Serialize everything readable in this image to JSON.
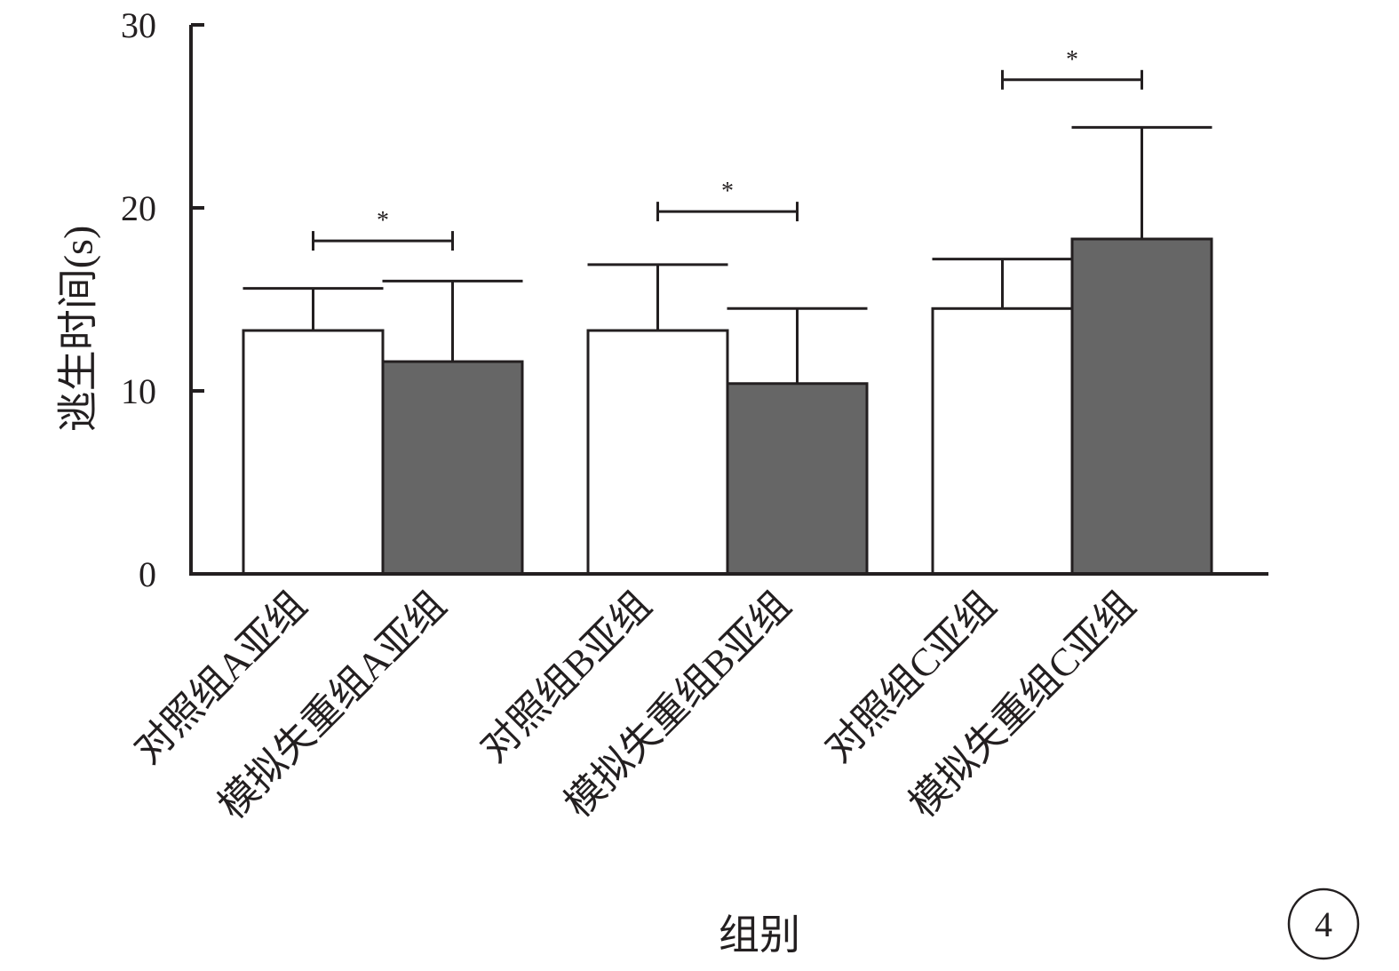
{
  "chart_data": {
    "type": "bar",
    "title": "",
    "xlabel": "组别",
    "ylabel": "逃生时间(s)",
    "ylim": [
      0,
      30
    ],
    "yticks": [
      "0",
      "10",
      "20",
      "30"
    ],
    "categories": [
      "对照组A亚组",
      "模拟失重组A亚组",
      "对照组B亚组",
      "模拟失重组B亚组",
      "对照组C亚组",
      "模拟失重组C亚组"
    ],
    "values": [
      13.3,
      11.6,
      13.3,
      10.4,
      14.5,
      18.3
    ],
    "errors": [
      2.3,
      4.4,
      3.6,
      4.1,
      2.7,
      6.1
    ],
    "bar_colors": [
      "#ffffff",
      "#666666",
      "#ffffff",
      "#666666",
      "#ffffff",
      "#666666"
    ],
    "significance": [
      {
        "from": 0,
        "to": 1,
        "y": 18.2,
        "label": "*"
      },
      {
        "from": 2,
        "to": 3,
        "y": 19.8,
        "label": "*"
      },
      {
        "from": 4,
        "to": 5,
        "y": 27.0,
        "label": "*"
      }
    ],
    "grid": false,
    "legend": "none"
  },
  "badge": {
    "label": "4"
  }
}
